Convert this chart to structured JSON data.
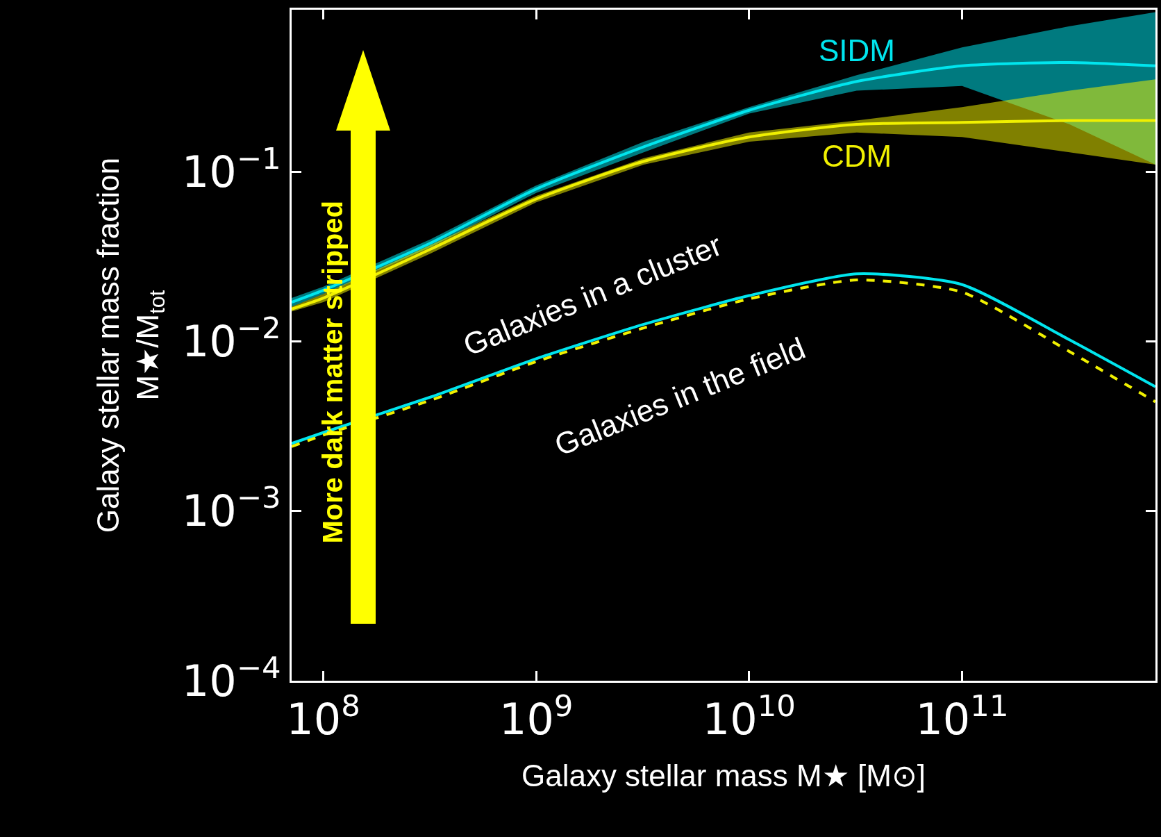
{
  "chart_data": {
    "type": "line",
    "xlabel": "Galaxy stellar mass M★ [M⊙]",
    "ylabel": "Galaxy stellar mass fraction\nM★/M$_{tot}$",
    "x": [
      71000000.0,
      100000000.0,
      320000000.0,
      1000000000.0,
      3200000000.0,
      10000000000.0,
      32000000000.0,
      100000000000.0,
      320000000000.0,
      810000000000.0
    ],
    "series": [
      {
        "name": "SIDM",
        "color": "#00e5ee",
        "line_style": "solid",
        "values": [
          0.017,
          0.02,
          0.038,
          0.079,
          0.14,
          0.23,
          0.34,
          0.42,
          0.44,
          0.42
        ],
        "lower": [
          0.016,
          0.019,
          0.036,
          0.075,
          0.13,
          0.22,
          0.3,
          0.32,
          0.19,
          0.11
        ],
        "upper": [
          0.018,
          0.021,
          0.04,
          0.083,
          0.15,
          0.24,
          0.37,
          0.54,
          0.72,
          0.87
        ]
      },
      {
        "name": "CDM",
        "color": "#f0f000",
        "line_style": "solid",
        "values": [
          0.0155,
          0.018,
          0.035,
          0.069,
          0.115,
          0.16,
          0.19,
          0.195,
          0.2,
          0.2
        ],
        "lower": [
          0.015,
          0.017,
          0.033,
          0.066,
          0.11,
          0.15,
          0.17,
          0.16,
          0.13,
          0.11
        ],
        "upper": [
          0.016,
          0.019,
          0.037,
          0.072,
          0.12,
          0.17,
          0.2,
          0.24,
          0.3,
          0.35
        ]
      },
      {
        "color": "#00e5ee",
        "line_style": "solid",
        "values": [
          0.0025,
          0.0029,
          0.0047,
          0.0079,
          0.0126,
          0.0186,
          0.025,
          0.0216,
          0.0102,
          0.0054
        ]
      },
      {
        "color": "#f0f000",
        "line_style": "dashed",
        "values": [
          0.0024,
          0.0028,
          0.0045,
          0.0076,
          0.012,
          0.0178,
          0.023,
          0.0195,
          0.0087,
          0.0044
        ]
      }
    ],
    "log": "xy",
    "xlim": [
      71000000.0,
      810000000000.0
    ],
    "ylim": [
      0.0001,
      0.9
    ],
    "xticks": [
      {
        "value": 100000000.0,
        "label": "10$^{8}$"
      },
      {
        "value": 1000000000.0,
        "label": "10$^{9}$"
      },
      {
        "value": 10000000000.0,
        "label": "10$^{10}$"
      },
      {
        "value": 100000000000.0,
        "label": "10$^{11}$"
      }
    ],
    "yticks": [
      {
        "value": 0.0001,
        "label": "10$^{−4}$"
      },
      {
        "value": 0.001,
        "label": "10$^{−3}$"
      },
      {
        "value": 0.01,
        "label": "10$^{−2}$"
      },
      {
        "value": 0.1,
        "label": "10$^{−1}$"
      }
    ],
    "grid": false,
    "legend": false,
    "annotations": [
      "More dark matter stripped",
      "Galaxies in a cluster",
      "Galaxies in the field"
    ]
  }
}
